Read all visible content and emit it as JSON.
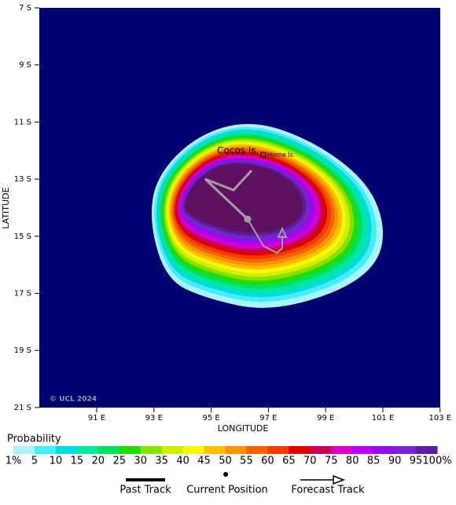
{
  "map": {
    "y_axis": {
      "title": "LATITUDE",
      "tick_labels": [
        "7 S",
        "9 S",
        "11 S",
        "13 S",
        "15 S",
        "17 S",
        "19 S",
        "21 S"
      ]
    },
    "x_axis": {
      "title": "LONGITUDE",
      "tick_labels": [
        "91 E",
        "93 E",
        "95 E",
        "97 E",
        "99 E",
        "101 E",
        "103 E"
      ]
    },
    "place_labels": [
      "Cocos Is.",
      "Home Is."
    ],
    "credit": "© UCL 2024",
    "colorbar": {
      "title": "Probability",
      "labels": [
        "1%",
        "5",
        "10",
        "15",
        "20",
        "25",
        "30",
        "35",
        "40",
        "45",
        "50",
        "55",
        "60",
        "65",
        "70",
        "75",
        "80",
        "85",
        "90",
        "95",
        "100%"
      ],
      "colors": [
        "#a8f4fa",
        "#48ecf4",
        "#00dcdc",
        "#00e8a0",
        "#00e060",
        "#20dc00",
        "#88e000",
        "#d0f000",
        "#f8f800",
        "#f8c000",
        "#f89400",
        "#f06400",
        "#f03c00",
        "#e00000",
        "#c80050",
        "#d800c8",
        "#b800f0",
        "#9010e0",
        "#7028c8",
        "#5a1e9c",
        "#601060"
      ]
    },
    "legend": [
      "Past Track",
      "Current Position",
      "Forecast Track"
    ]
  }
}
